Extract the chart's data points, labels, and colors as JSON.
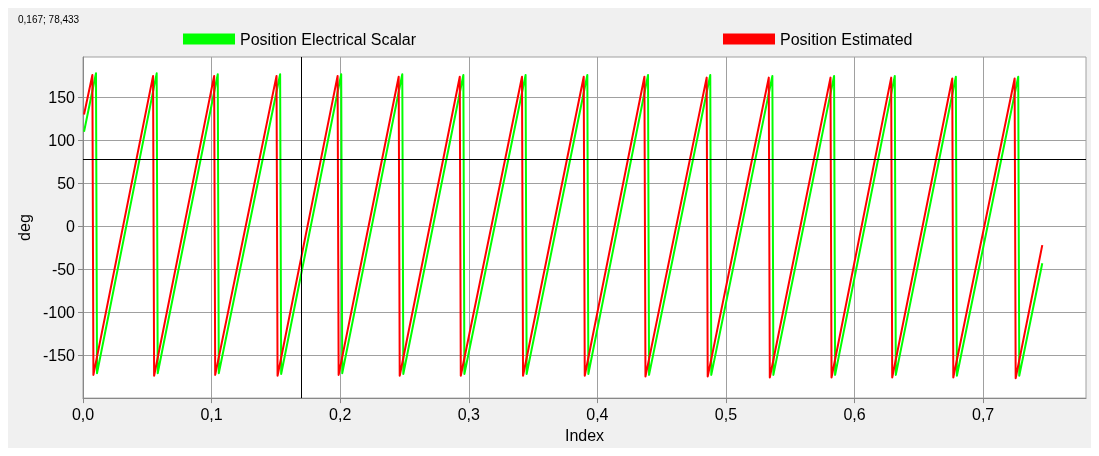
{
  "chart_data": {
    "type": "line",
    "xlabel": "Index",
    "ylabel": "deg",
    "xlim": [
      0,
      0.78
    ],
    "ylim": [
      -200,
      197
    ],
    "xticks": [
      {
        "value": 0,
        "label": "0,0"
      },
      {
        "value": 0.1,
        "label": "0,1"
      },
      {
        "value": 0.2,
        "label": "0,2"
      },
      {
        "value": 0.3,
        "label": "0,3"
      },
      {
        "value": 0.4,
        "label": "0,4"
      },
      {
        "value": 0.5,
        "label": "0,5"
      },
      {
        "value": 0.6,
        "label": "0,6"
      },
      {
        "value": 0.7,
        "label": "0,7"
      }
    ],
    "yticks": [
      -150,
      -100,
      -50,
      0,
      50,
      100,
      150
    ],
    "grid": true,
    "legend": "top",
    "marker": "none",
    "line_style": "solid",
    "annotations": [
      "0,167; 78,433"
    ],
    "ref_lines": [
      {
        "axis": "x",
        "value": 0.167,
        "color": "#000000"
      },
      {
        "axis": "y",
        "value": 78.433,
        "color": "#000000"
      }
    ],
    "series": [
      {
        "name": "Position Electrical Scalar",
        "color": "#00ff00",
        "x": [
          0.0008,
          0.0101,
          0.0109,
          0.0573,
          0.0581,
          0.1048,
          0.1056,
          0.1533,
          0.1541,
          0.2008,
          0.2016,
          0.2483,
          0.2491,
          0.2958,
          0.2966,
          0.3442,
          0.345,
          0.3922,
          0.393,
          0.4394,
          0.4402,
          0.4878,
          0.4886,
          0.5361,
          0.5369,
          0.5841,
          0.5849,
          0.6313,
          0.6321,
          0.6788,
          0.6796,
          0.7273,
          0.7281,
          0.746
        ],
        "values": [
          110,
          178,
          -171,
          178,
          -171,
          177,
          -171,
          177,
          -172,
          177,
          -171,
          177,
          -172,
          176,
          -172,
          176,
          -172,
          176,
          -172,
          176,
          -173,
          176,
          -173,
          175,
          -173,
          175,
          -173,
          175,
          -173,
          174,
          -174,
          174,
          -174,
          -43
        ]
      },
      {
        "name": "Position Estimated",
        "color": "#ff0000",
        "x": [
          0.0008,
          0.0073,
          0.0081,
          0.0545,
          0.0553,
          0.102,
          0.1028,
          0.1505,
          0.1513,
          0.198,
          0.1988,
          0.2455,
          0.2463,
          0.293,
          0.2938,
          0.3414,
          0.3422,
          0.3894,
          0.3902,
          0.4366,
          0.4374,
          0.485,
          0.4858,
          0.5333,
          0.5341,
          0.5813,
          0.5821,
          0.6285,
          0.6293,
          0.676,
          0.6768,
          0.7245,
          0.7253,
          0.746
        ],
        "values": [
          130,
          176,
          -173,
          175,
          -174,
          175,
          -173,
          175,
          -174,
          175,
          -173,
          174,
          -174,
          174,
          -174,
          174,
          -174,
          174,
          -174,
          174,
          -175,
          173,
          -175,
          173,
          -176,
          173,
          -176,
          173,
          -176,
          172,
          -176,
          172,
          -177,
          -22
        ]
      }
    ]
  }
}
